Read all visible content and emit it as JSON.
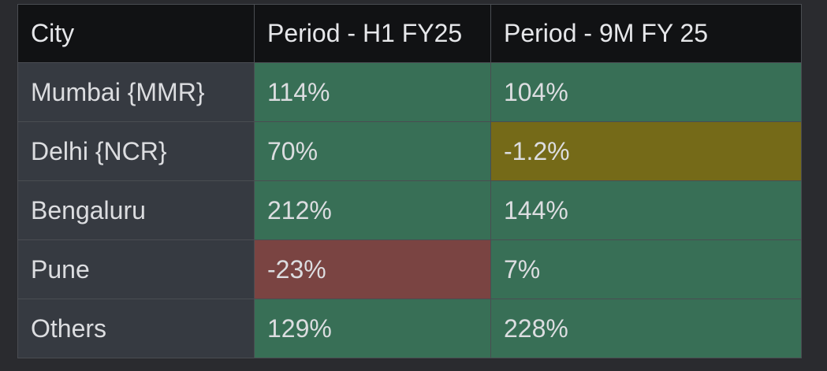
{
  "table": {
    "headers": [
      "City",
      "Period - H1 FY25",
      "Period - 9M FY 25"
    ],
    "rows": [
      {
        "city": "Mumbai {MMR}",
        "h1": "114%",
        "nine_m": "104%"
      },
      {
        "city": "Delhi {NCR}",
        "h1": "70%",
        "nine_m": "-1.2%"
      },
      {
        "city": "Bengaluru",
        "h1": "212%",
        "nine_m": "144%"
      },
      {
        "city": "Pune",
        "h1": "-23%",
        "nine_m": "7%"
      },
      {
        "city": "Others",
        "h1": "129%",
        "nine_m": "228%"
      }
    ]
  },
  "colors": {
    "background": "#2a2b2f",
    "header_bg": "#111214",
    "city_bg": "#363a41",
    "positive": "#386f56",
    "slightly_negative": "#756a18",
    "negative": "#7a4442"
  }
}
